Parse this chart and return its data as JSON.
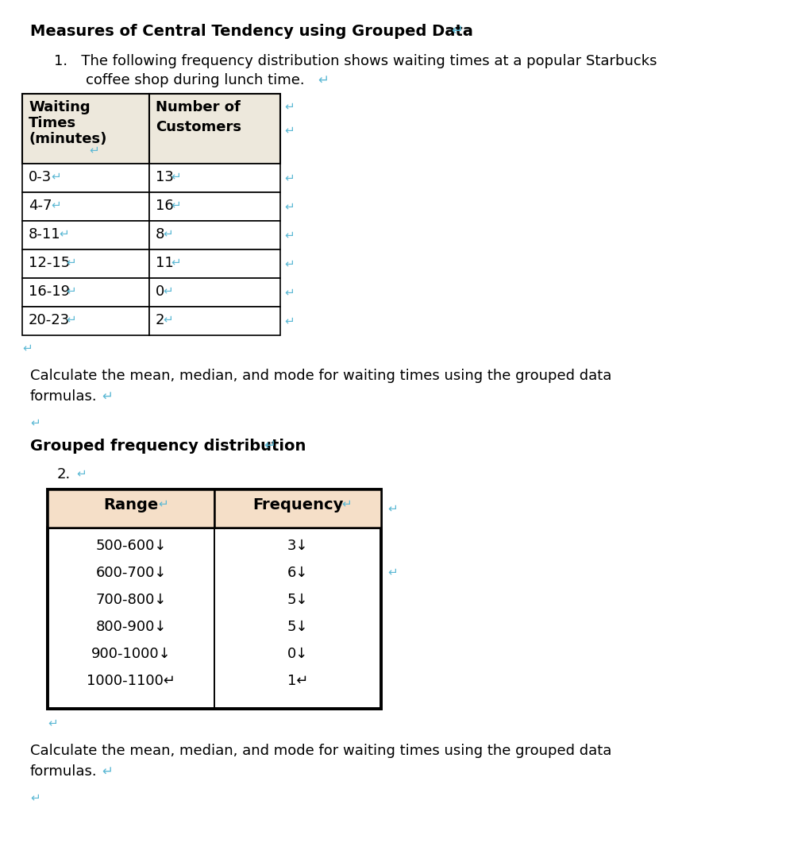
{
  "title": "Measures of Central Tendency using Grouped Data",
  "bg_color": "#ffffff",
  "arrow_color": "#5bb8d4",
  "text_color": "#000000",
  "table1_header_bg": "#ede8dc",
  "table1_header": [
    "Waiting\nTimes\n(minutes)",
    "Number of\nCustomers"
  ],
  "table1_rows": [
    [
      "0-3",
      "13"
    ],
    [
      "4-7",
      "16"
    ],
    [
      "8-11",
      "8"
    ],
    [
      "12-15",
      "11"
    ],
    [
      "16-19",
      "0"
    ],
    [
      "20-23",
      "2"
    ]
  ],
  "table2_header_bg": "#f5dfc8",
  "table2_header": [
    "Range",
    "Frequency"
  ],
  "table2_rows": [
    [
      "500-600↓",
      "3↓"
    ],
    [
      "600-700↓",
      "6↓"
    ],
    [
      "700-800↓",
      "5↓"
    ],
    [
      "800-900↓",
      "5↓"
    ],
    [
      "900-1000↓",
      "0↓"
    ],
    [
      "1000-1100↵",
      "1↵"
    ]
  ]
}
